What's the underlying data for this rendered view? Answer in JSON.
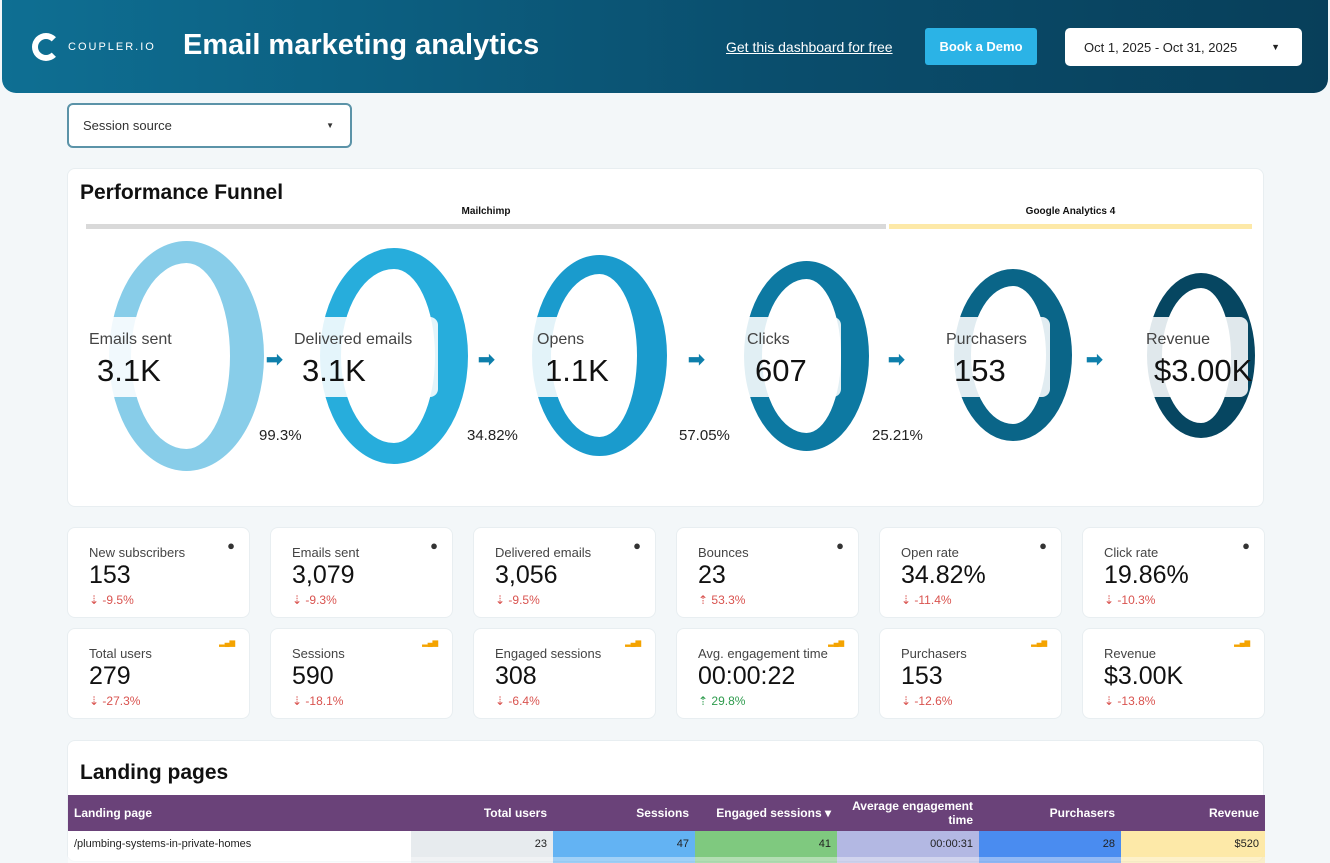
{
  "header": {
    "logo_text": "COUPLER.IO",
    "title": "Email marketing analytics",
    "get_link": "Get this dashboard for free",
    "demo_button": "Book a Demo",
    "date_range": "Oct 1, 2025 - Oct 31, 2025"
  },
  "filter": {
    "session_source": "Session source"
  },
  "funnel": {
    "title": "Performance Funnel",
    "sources": [
      {
        "name": "Mailchimp",
        "color": "#d9d9d9"
      },
      {
        "name": "Google Analytics 4",
        "color": "#fde9a8"
      }
    ],
    "stages": [
      {
        "name": "Emails sent",
        "value": "3.1K",
        "color": "#8fd8f5"
      },
      {
        "name": "Delivered emails",
        "value": "3.1K",
        "color": "#29b6e8"
      },
      {
        "name": "Opens",
        "value": "1.1K",
        "color": "#1ba3d8"
      },
      {
        "name": "Clicks",
        "value": "607",
        "color": "#0e7fab"
      },
      {
        "name": "Purchasers",
        "value": "153",
        "color": "#0a6a8f"
      },
      {
        "name": "Revenue",
        "value": "$3.00K",
        "color": "#064a66"
      }
    ],
    "rates": [
      "99.3%",
      "34.82%",
      "57.05%",
      "25.21%"
    ]
  },
  "kpis": [
    {
      "label": "New subscribers",
      "value": "153",
      "delta": "-9.5%",
      "dir": "down",
      "icon": "mailchimp-icon"
    },
    {
      "label": "Emails sent",
      "value": "3,079",
      "delta": "-9.3%",
      "dir": "down",
      "icon": "mailchimp-icon"
    },
    {
      "label": "Delivered emails",
      "value": "3,056",
      "delta": "-9.5%",
      "dir": "down",
      "icon": "mailchimp-icon"
    },
    {
      "label": "Bounces",
      "value": "23",
      "delta": "53.3%",
      "dir": "up-bad",
      "icon": "mailchimp-icon"
    },
    {
      "label": "Open rate",
      "value": "34.82%",
      "delta": "-11.4%",
      "dir": "down",
      "icon": "mailchimp-icon"
    },
    {
      "label": "Click rate",
      "value": "19.86%",
      "delta": "-10.3%",
      "dir": "down",
      "icon": "mailchimp-icon"
    },
    {
      "label": "Total users",
      "value": "279",
      "delta": "-27.3%",
      "dir": "down",
      "icon": "ga4-icon"
    },
    {
      "label": "Sessions",
      "value": "590",
      "delta": "-18.1%",
      "dir": "down",
      "icon": "ga4-icon"
    },
    {
      "label": "Engaged sessions",
      "value": "308",
      "delta": "-6.4%",
      "dir": "down",
      "icon": "ga4-icon"
    },
    {
      "label": "Avg. engagement time",
      "value": "00:00:22",
      "delta": "29.8%",
      "dir": "up",
      "icon": "ga4-icon"
    },
    {
      "label": "Purchasers",
      "value": "153",
      "delta": "-12.6%",
      "dir": "down",
      "icon": "ga4-icon"
    },
    {
      "label": "Revenue",
      "value": "$3.00K",
      "delta": "-13.8%",
      "dir": "down",
      "icon": "ga4-icon"
    }
  ],
  "landing": {
    "title": "Landing pages",
    "columns": [
      "Landing page",
      "Total users",
      "Sessions",
      "Engaged sessions ▾",
      "Average engagement time",
      "Purchasers",
      "Revenue"
    ],
    "column_colors": [
      "#ffffff",
      "#e7ebee",
      "#63b3f3",
      "#7fc97f",
      "#b3b8e3",
      "#4a8cf0",
      "#fde9a8"
    ],
    "rows": [
      [
        "/plumbing-systems-in-private-homes",
        "23",
        "47",
        "41",
        "00:00:31",
        "28",
        "$520"
      ]
    ]
  }
}
